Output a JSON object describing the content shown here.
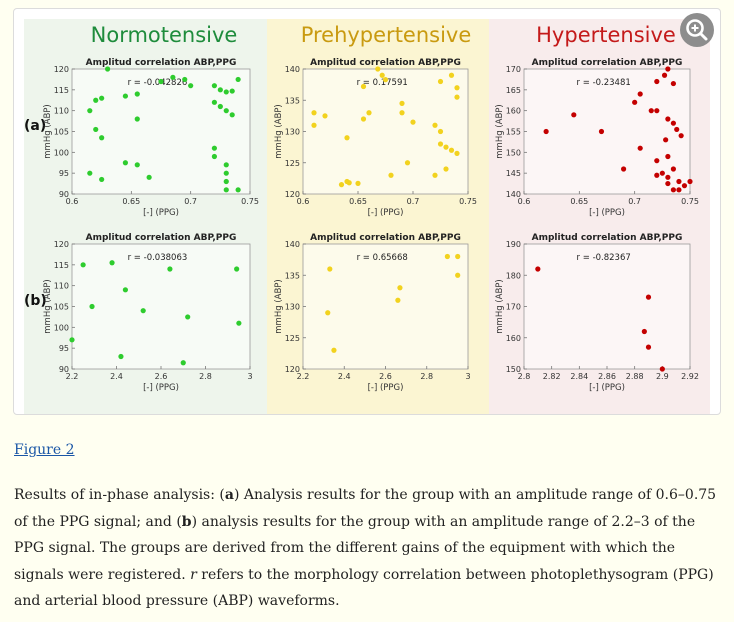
{
  "figure": {
    "columns": [
      {
        "title": "Normotensive",
        "title_color": "#1e8c3c",
        "bg": "#eef5ec",
        "point_color": "#2ecc2e"
      },
      {
        "title": "Prehypertensive",
        "title_color": "#c99a10",
        "bg": "#fbf5d2",
        "point_color": "#f2d21e"
      },
      {
        "title": "Hypertensive",
        "title_color": "#c41a1a",
        "bg": "#f8ecec",
        "point_color": "#c40000"
      }
    ],
    "row_labels": [
      "(a)",
      "(b)"
    ],
    "zoom_icon": "zoom-icon"
  },
  "chart_data": [
    {
      "type": "scatter",
      "group": "Normotensive",
      "row": "(a)",
      "title": "Amplitud correlation ABP,PPG",
      "annotation": "r = -0.042826",
      "xlabel": "[-] (PPG)",
      "ylabel": "mmHg (ABP)",
      "xlim": [
        0.6,
        0.75
      ],
      "ylim": [
        90,
        120
      ],
      "xticks": [
        "0.6",
        "0.65",
        "0.7",
        "0.75"
      ],
      "yticks": [
        "90",
        "95",
        "100",
        "105",
        "110",
        "115",
        "120"
      ],
      "color": "#2ecc2e",
      "points": [
        [
          0.63,
          120
        ],
        [
          0.685,
          118
        ],
        [
          0.695,
          117.5
        ],
        [
          0.675,
          117
        ],
        [
          0.7,
          116
        ],
        [
          0.72,
          116
        ],
        [
          0.725,
          115
        ],
        [
          0.73,
          114.5
        ],
        [
          0.735,
          114.7
        ],
        [
          0.74,
          117.5
        ],
        [
          0.655,
          114
        ],
        [
          0.645,
          113.5
        ],
        [
          0.625,
          113
        ],
        [
          0.62,
          112.5
        ],
        [
          0.72,
          112
        ],
        [
          0.725,
          111
        ],
        [
          0.73,
          110
        ],
        [
          0.735,
          109
        ],
        [
          0.615,
          110
        ],
        [
          0.655,
          108
        ],
        [
          0.62,
          105.5
        ],
        [
          0.625,
          103.5
        ],
        [
          0.72,
          101
        ],
        [
          0.72,
          99
        ],
        [
          0.645,
          97.5
        ],
        [
          0.655,
          97
        ],
        [
          0.73,
          97
        ],
        [
          0.73,
          95
        ],
        [
          0.615,
          95
        ],
        [
          0.625,
          93.5
        ],
        [
          0.665,
          94
        ],
        [
          0.73,
          93
        ],
        [
          0.73,
          91
        ],
        [
          0.74,
          91
        ]
      ]
    },
    {
      "type": "scatter",
      "group": "Prehypertensive",
      "row": "(a)",
      "title": "Amplitud correlation ABP,PPG",
      "annotation": "r = 0.17591",
      "xlabel": "[-] (PPG)",
      "ylabel": "mmHg (ABP)",
      "xlim": [
        0.6,
        0.75
      ],
      "ylim": [
        120,
        140
      ],
      "xticks": [
        "0.6",
        "0.65",
        "0.7",
        "0.75"
      ],
      "yticks": [
        "120",
        "125",
        "130",
        "135",
        "140"
      ],
      "color": "#f2d21e",
      "points": [
        [
          0.668,
          140
        ],
        [
          0.672,
          139
        ],
        [
          0.675,
          138.3
        ],
        [
          0.735,
          139
        ],
        [
          0.725,
          138
        ],
        [
          0.74,
          137
        ],
        [
          0.655,
          137.2
        ],
        [
          0.74,
          135.5
        ],
        [
          0.69,
          134.5
        ],
        [
          0.66,
          133
        ],
        [
          0.61,
          133
        ],
        [
          0.62,
          132.5
        ],
        [
          0.655,
          132
        ],
        [
          0.69,
          133
        ],
        [
          0.72,
          131
        ],
        [
          0.7,
          131.5
        ],
        [
          0.61,
          131
        ],
        [
          0.725,
          130
        ],
        [
          0.64,
          129
        ],
        [
          0.725,
          128
        ],
        [
          0.73,
          127.5
        ],
        [
          0.735,
          127
        ],
        [
          0.74,
          126.5
        ],
        [
          0.695,
          125
        ],
        [
          0.73,
          124
        ],
        [
          0.68,
          123
        ],
        [
          0.64,
          122
        ],
        [
          0.635,
          121.5
        ],
        [
          0.642,
          121.8
        ],
        [
          0.65,
          121.7
        ],
        [
          0.72,
          123
        ]
      ]
    },
    {
      "type": "scatter",
      "group": "Hypertensive",
      "row": "(a)",
      "title": "Amplitud correlation ABP,PPG",
      "annotation": "r = -0.23481",
      "xlabel": "[-] (PPG)",
      "ylabel": "mmHg (ABP)",
      "xlim": [
        0.6,
        0.75
      ],
      "ylim": [
        140,
        170
      ],
      "xticks": [
        "0.6",
        "0.65",
        "0.7",
        "0.75"
      ],
      "yticks": [
        "140",
        "145",
        "150",
        "155",
        "160",
        "165",
        "170"
      ],
      "color": "#c40000",
      "points": [
        [
          0.73,
          170
        ],
        [
          0.727,
          168.5
        ],
        [
          0.72,
          167
        ],
        [
          0.735,
          166.5
        ],
        [
          0.705,
          164
        ],
        [
          0.7,
          162
        ],
        [
          0.72,
          160
        ],
        [
          0.715,
          160
        ],
        [
          0.73,
          158
        ],
        [
          0.735,
          157
        ],
        [
          0.62,
          155
        ],
        [
          0.645,
          159
        ],
        [
          0.67,
          155
        ],
        [
          0.738,
          155.5
        ],
        [
          0.742,
          154
        ],
        [
          0.728,
          153
        ],
        [
          0.705,
          151
        ],
        [
          0.73,
          149
        ],
        [
          0.72,
          148
        ],
        [
          0.735,
          146
        ],
        [
          0.725,
          145
        ],
        [
          0.73,
          144
        ],
        [
          0.72,
          144.5
        ],
        [
          0.74,
          143
        ],
        [
          0.745,
          142
        ],
        [
          0.73,
          142.5
        ],
        [
          0.735,
          141
        ],
        [
          0.75,
          143
        ],
        [
          0.69,
          146
        ],
        [
          0.74,
          141
        ]
      ]
    },
    {
      "type": "scatter",
      "group": "Normotensive",
      "row": "(b)",
      "title": "Amplitud correlation ABP,PPG",
      "annotation": "r = -0.038063",
      "xlabel": "[-] (PPG)",
      "ylabel": "mmHg (ABP)",
      "xlim": [
        2.2,
        3.0
      ],
      "ylim": [
        90,
        120
      ],
      "xticks": [
        "2.2",
        "2.4",
        "2.6",
        "2.8",
        "3"
      ],
      "yticks": [
        "90",
        "95",
        "100",
        "105",
        "110",
        "115",
        "120"
      ],
      "color": "#2ecc2e",
      "points": [
        [
          2.25,
          115
        ],
        [
          2.38,
          115.5
        ],
        [
          2.64,
          114
        ],
        [
          2.94,
          114
        ],
        [
          2.44,
          109
        ],
        [
          2.29,
          105
        ],
        [
          2.52,
          104
        ],
        [
          2.72,
          102.5
        ],
        [
          2.95,
          101
        ],
        [
          2.2,
          97
        ],
        [
          2.42,
          93
        ],
        [
          2.7,
          91.5
        ]
      ]
    },
    {
      "type": "scatter",
      "group": "Prehypertensive",
      "row": "(b)",
      "title": "Amplitud correlation ABP,PPG",
      "annotation": "r = 0.65668",
      "xlabel": "[-] (PPG)",
      "ylabel": "mmHg (ABP)",
      "xlim": [
        2.2,
        3.0
      ],
      "ylim": [
        120,
        140
      ],
      "xticks": [
        "2.2",
        "2.4",
        "2.6",
        "2.8",
        "3"
      ],
      "yticks": [
        "120",
        "125",
        "130",
        "135",
        "140"
      ],
      "color": "#f2d21e",
      "points": [
        [
          2.9,
          138
        ],
        [
          2.95,
          138
        ],
        [
          2.95,
          135
        ],
        [
          2.33,
          136
        ],
        [
          2.67,
          133
        ],
        [
          2.66,
          131
        ],
        [
          2.32,
          129
        ],
        [
          2.35,
          123
        ]
      ]
    },
    {
      "type": "scatter",
      "group": "Hypertensive",
      "row": "(b)",
      "title": "Amplitud correlation ABP,PPG",
      "annotation": "r = -0.82367",
      "xlabel": "[-] (PPG)",
      "ylabel": "mmHg (ABP)",
      "xlim": [
        2.8,
        2.92
      ],
      "ylim": [
        150,
        190
      ],
      "xticks": [
        "2.8",
        "2.82",
        "2.84",
        "2.86",
        "2.88",
        "2.9",
        "2.92"
      ],
      "yticks": [
        "150",
        "160",
        "170",
        "180",
        "190"
      ],
      "color": "#c40000",
      "points": [
        [
          2.81,
          182
        ],
        [
          2.89,
          173
        ],
        [
          2.887,
          162
        ],
        [
          2.89,
          157
        ],
        [
          2.9,
          150
        ]
      ]
    }
  ],
  "figure_link": "Figure 2",
  "caption": {
    "part1": "Results of in-phase analysis: (",
    "a_label": "a",
    "part2": ") Analysis results for the group with an amplitude range of 0.6–0.75 of the PPG signal; and (",
    "b_label": "b",
    "part3": ") analysis results for the group with an amplitude range of 2.2–3 of the PPG signal. The groups are derived from the different gains of the equipment with which the signals were registered. ",
    "r_symbol": "r",
    "part4": " refers to the morphology correlation between photoplethysogram (PPG) and arterial blood pressure (ABP) waveforms."
  }
}
